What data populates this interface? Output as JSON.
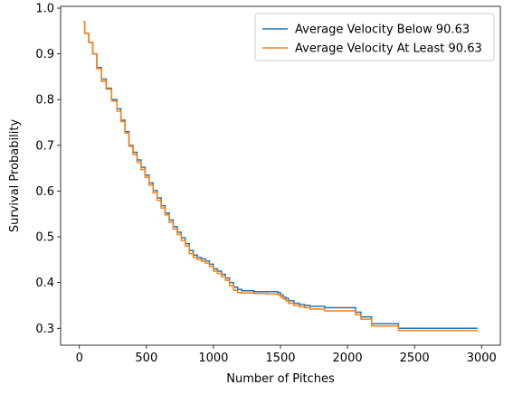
{
  "chart_data": {
    "type": "line",
    "step": true,
    "title": "",
    "xlabel": "Number of Pitches",
    "ylabel": "Survival Probability",
    "xlim": [
      -140,
      3140
    ],
    "ylim": [
      0.263,
      1.004
    ],
    "xticks": [
      0,
      500,
      1000,
      1500,
      2000,
      2500,
      3000
    ],
    "xtick_labels": [
      "0",
      "500",
      "1000",
      "1500",
      "2000",
      "2500",
      "3000"
    ],
    "yticks": [
      0.3,
      0.4,
      0.5,
      0.6,
      0.7,
      0.8,
      0.9,
      1.0
    ],
    "ytick_labels": [
      "0.3",
      "0.4",
      "0.5",
      "0.6",
      "0.7",
      "0.8",
      "0.9",
      "1.0"
    ],
    "grid": false,
    "legend_position": "upper right",
    "series": [
      {
        "name": "Average Velocity Below 90.63",
        "color": "#1f77b4",
        "x": [
          30,
          40,
          70,
          100,
          130,
          165,
          200,
          240,
          280,
          310,
          340,
          370,
          400,
          430,
          460,
          490,
          520,
          550,
          580,
          610,
          640,
          670,
          700,
          730,
          760,
          790,
          820,
          850,
          880,
          910,
          940,
          970,
          1000,
          1030,
          1060,
          1090,
          1120,
          1150,
          1180,
          1210,
          1240,
          1300,
          1400,
          1480,
          1500,
          1520,
          1540,
          1560,
          1600,
          1640,
          1680,
          1720,
          1830,
          2060,
          2100,
          2180,
          2380,
          2970
        ],
        "y": [
          0.97,
          0.945,
          0.925,
          0.9,
          0.87,
          0.845,
          0.825,
          0.8,
          0.78,
          0.755,
          0.73,
          0.7,
          0.685,
          0.668,
          0.652,
          0.635,
          0.618,
          0.601,
          0.585,
          0.568,
          0.552,
          0.537,
          0.522,
          0.51,
          0.498,
          0.485,
          0.47,
          0.46,
          0.455,
          0.452,
          0.447,
          0.44,
          0.43,
          0.425,
          0.418,
          0.41,
          0.4,
          0.39,
          0.385,
          0.382,
          0.382,
          0.38,
          0.38,
          0.378,
          0.373,
          0.368,
          0.365,
          0.36,
          0.355,
          0.352,
          0.35,
          0.348,
          0.345,
          0.335,
          0.325,
          0.31,
          0.3,
          0.3
        ]
      },
      {
        "name": "Average Velocity At Least 90.63",
        "color": "#ff7f0e",
        "x": [
          30,
          40,
          70,
          100,
          130,
          165,
          200,
          240,
          280,
          310,
          340,
          370,
          400,
          430,
          460,
          490,
          520,
          550,
          580,
          610,
          640,
          670,
          700,
          730,
          760,
          790,
          820,
          850,
          880,
          910,
          940,
          970,
          1000,
          1030,
          1060,
          1090,
          1120,
          1150,
          1180,
          1210,
          1240,
          1300,
          1400,
          1480,
          1500,
          1520,
          1540,
          1560,
          1600,
          1640,
          1680,
          1720,
          1830,
          2060,
          2100,
          2180,
          2380,
          2970
        ],
        "y": [
          0.97,
          0.945,
          0.925,
          0.9,
          0.868,
          0.84,
          0.823,
          0.797,
          0.775,
          0.752,
          0.727,
          0.698,
          0.68,
          0.663,
          0.647,
          0.63,
          0.613,
          0.596,
          0.58,
          0.563,
          0.548,
          0.532,
          0.517,
          0.505,
          0.492,
          0.48,
          0.463,
          0.455,
          0.45,
          0.447,
          0.442,
          0.435,
          0.425,
          0.42,
          0.413,
          0.405,
          0.393,
          0.383,
          0.378,
          0.377,
          0.377,
          0.376,
          0.375,
          0.373,
          0.368,
          0.364,
          0.36,
          0.355,
          0.35,
          0.347,
          0.345,
          0.342,
          0.338,
          0.33,
          0.32,
          0.305,
          0.295,
          0.295
        ]
      }
    ]
  }
}
